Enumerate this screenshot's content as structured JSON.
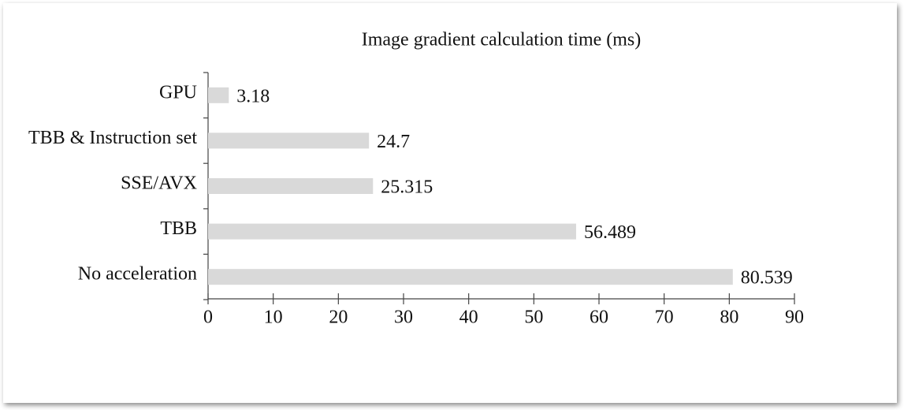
{
  "chart_data": {
    "type": "bar",
    "orientation": "horizontal",
    "title": "Image gradient calculation time (ms)",
    "categories": [
      "GPU",
      "TBB & Instruction set",
      "SSE/AVX",
      "TBB",
      "No acceleration"
    ],
    "values": [
      3.18,
      24.7,
      25.315,
      56.489,
      80.539
    ],
    "color": "#d9d9d9",
    "xlim": [
      0,
      90
    ],
    "xticks": [
      0,
      10,
      20,
      30,
      40,
      50,
      60,
      70,
      80,
      90
    ],
    "grid": false
  }
}
